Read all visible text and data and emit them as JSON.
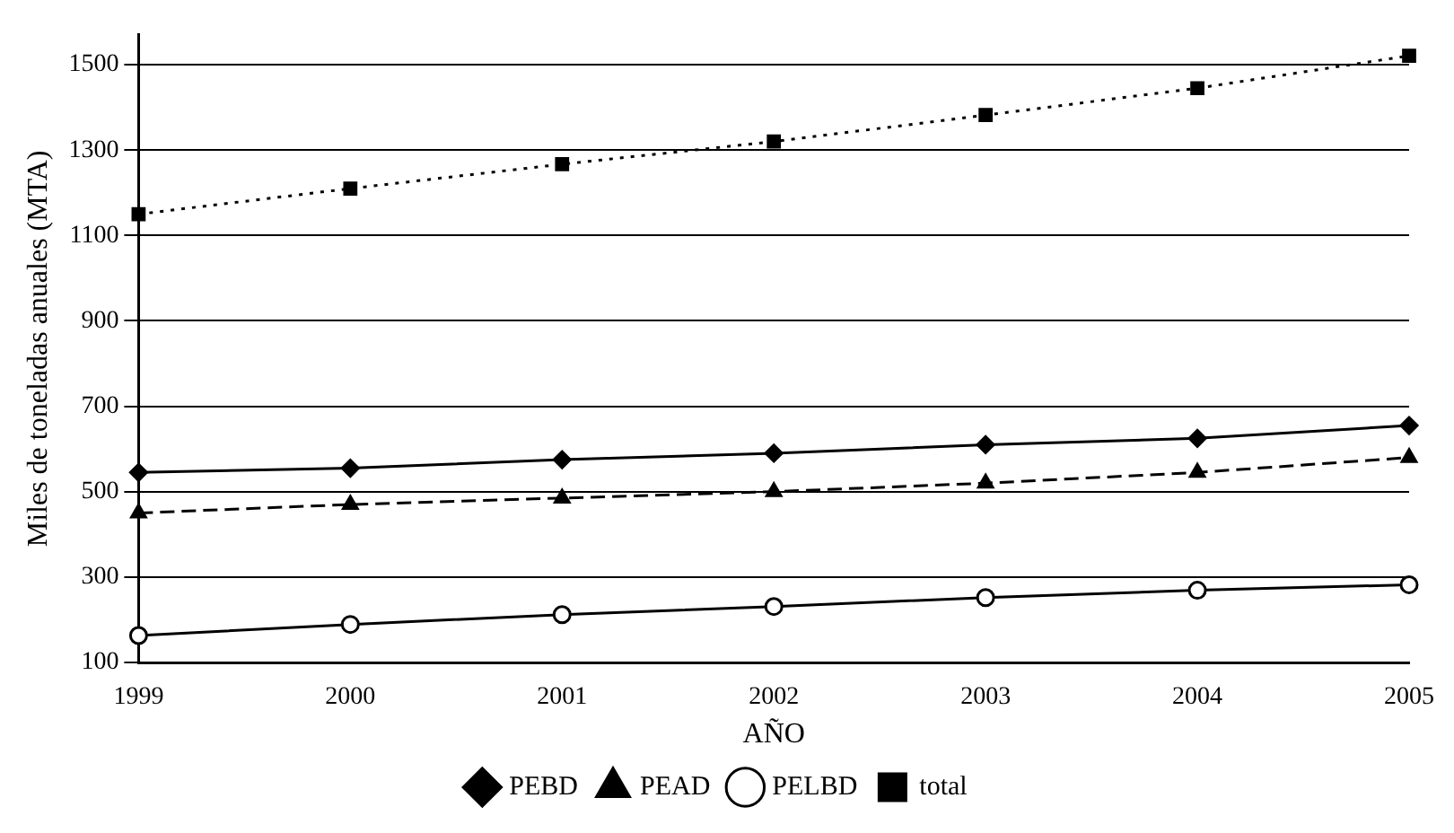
{
  "chart_data": {
    "type": "line",
    "xlabel": "AÑO",
    "ylabel": "Miles de toneladas anuales (MTA)",
    "categories": [
      "1999",
      "2000",
      "2001",
      "2002",
      "2003",
      "2004",
      "2005"
    ],
    "series": [
      {
        "name": "PEBD",
        "color": "#000000",
        "marker": "diamond",
        "line_style": "solid",
        "values": [
          545,
          555,
          575,
          590,
          610,
          625,
          655
        ]
      },
      {
        "name": "PEAD",
        "color": "#000000",
        "marker": "triangle",
        "line_style": "dashed",
        "values": [
          450,
          470,
          485,
          500,
          520,
          545,
          580
        ]
      },
      {
        "name": "PELBD",
        "color": "#000000",
        "marker": "circle",
        "line_style": "solid",
        "values": [
          163,
          189,
          212,
          231,
          252,
          269,
          282
        ]
      },
      {
        "name": "total",
        "color": "#000000",
        "marker": "square",
        "line_style": "dotted",
        "values": [
          1150,
          1210,
          1267,
          1320,
          1382,
          1445,
          1521
        ]
      }
    ],
    "ylim": [
      100,
      1570
    ],
    "yticks": [
      100,
      300,
      500,
      700,
      900,
      1100,
      1300,
      1500
    ],
    "grid": "y",
    "legend": "bottom"
  }
}
